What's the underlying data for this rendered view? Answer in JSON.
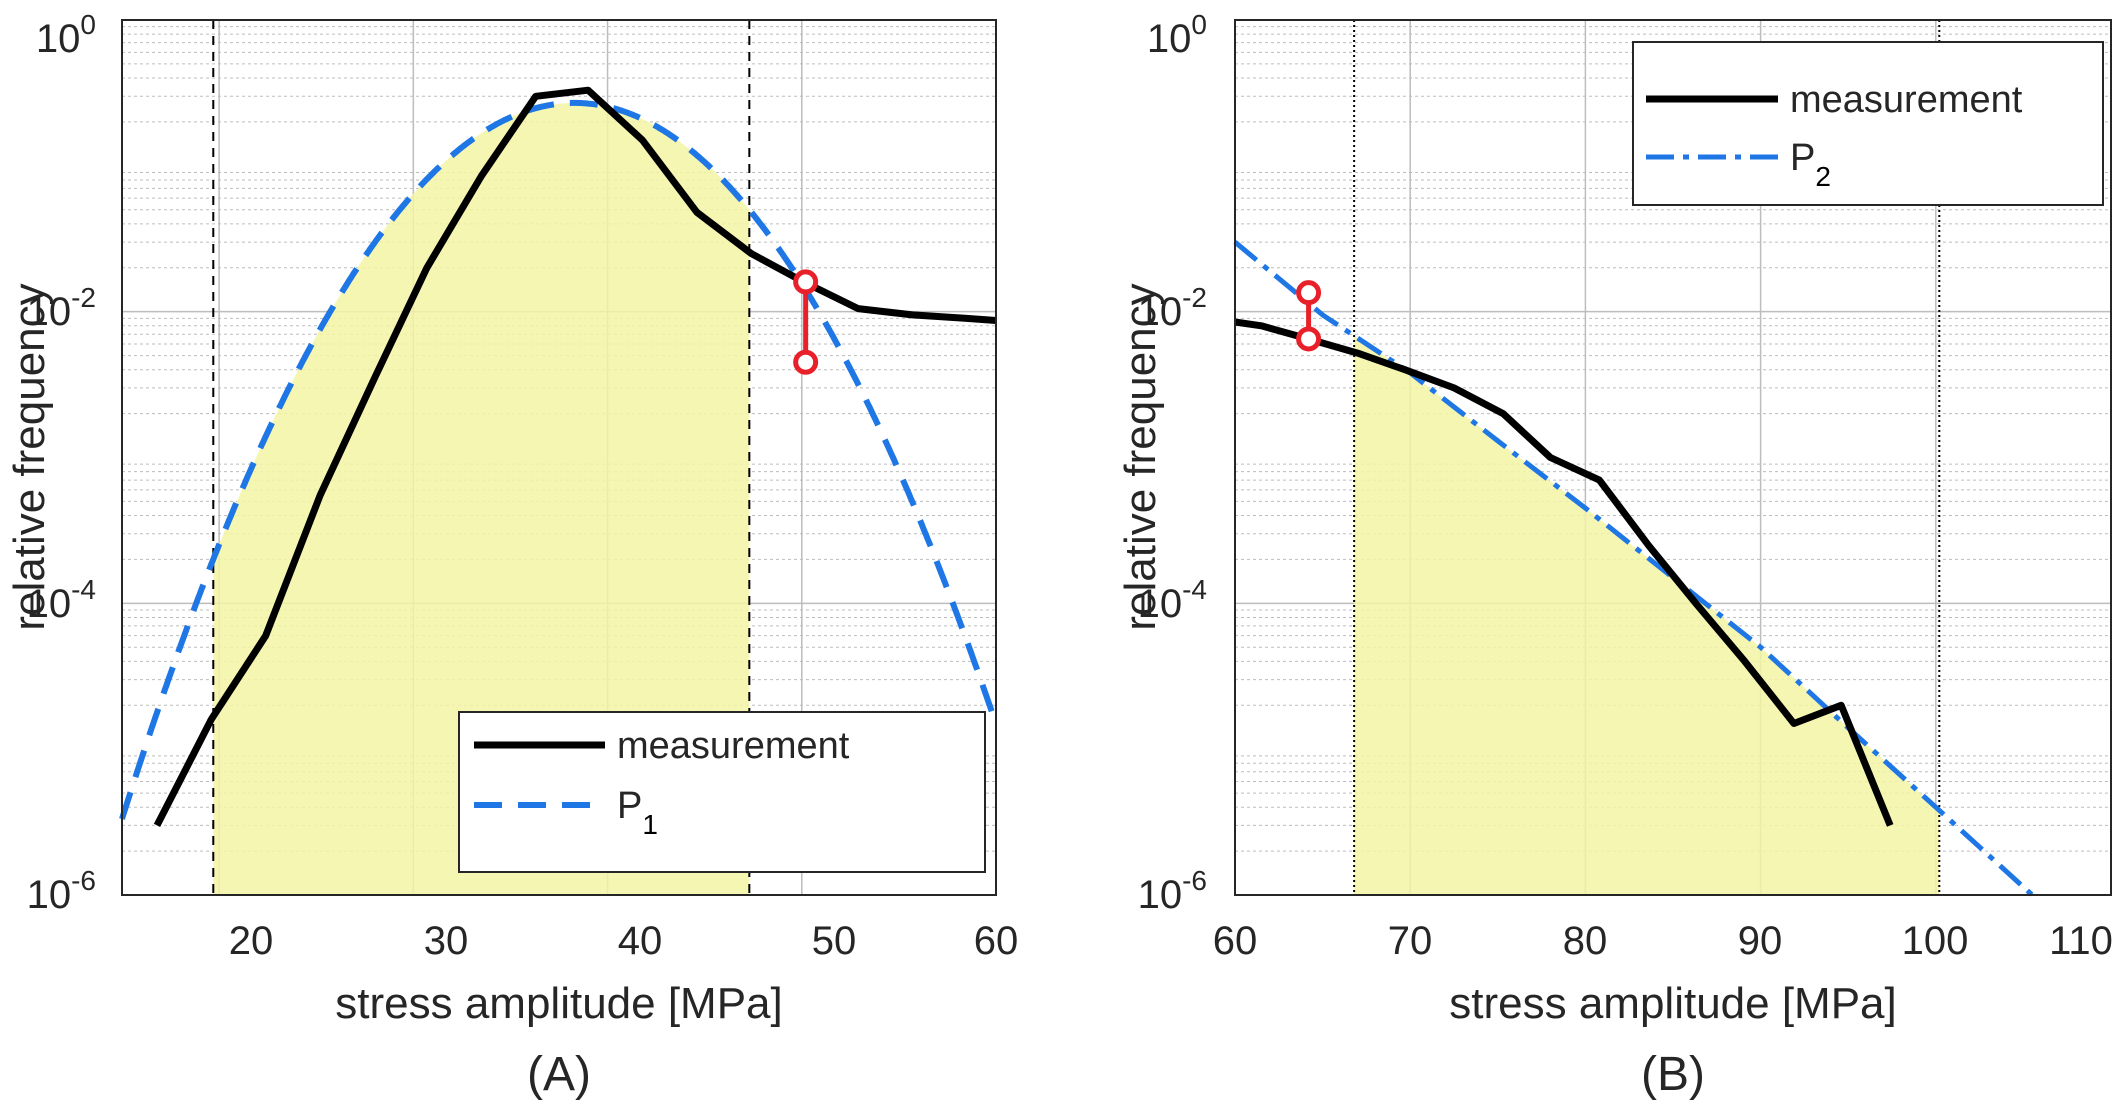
{
  "colors": {
    "measurement": "#000000",
    "fit": "#1f77e6",
    "marker": "#e8202a",
    "fill": "#f5f5a6",
    "grid": "#bdbdbd",
    "axes": "#262626"
  },
  "chart_data": [
    {
      "type": "line",
      "panel_label": "(A)",
      "xlabel": "stress amplitude [MPa]",
      "ylabel": "relative frequency",
      "xlim": [
        15,
        60
      ],
      "ylim": [
        1e-06,
        1
      ],
      "yscale": "log",
      "grid": true,
      "x_ticks": [
        20,
        30,
        40,
        50,
        60
      ],
      "x_tick_labels": [
        "20",
        "30",
        "40",
        "50",
        "60"
      ],
      "y_ticks": [
        {
          "value": 1e-06,
          "base": "10",
          "exp": "-6"
        },
        {
          "value": 0.0001,
          "base": "10",
          "exp": "-4"
        },
        {
          "value": 0.01,
          "base": "10",
          "exp": "-2"
        },
        {
          "value": 1,
          "base": "10",
          "exp": "0"
        }
      ],
      "legend": {
        "position": "bottom-right",
        "entries": [
          {
            "label": "measurement",
            "style": "solid",
            "series": "measurement"
          },
          {
            "label": "P",
            "sub": "1",
            "style": "dashed",
            "series": "fit"
          }
        ]
      },
      "vlines": [
        19.7,
        47.3
      ],
      "shaded_region": [
        19.7,
        47.3
      ],
      "series": [
        {
          "name": "measurement",
          "x": [
            16.8,
            19.6,
            22.4,
            25.2,
            28.0,
            30.7,
            33.5,
            36.3,
            39.0,
            41.8,
            44.6,
            47.4,
            50.1,
            52.9,
            55.7,
            58.4,
            60.0
          ],
          "y": [
            3e-06,
            1.6e-05,
            6e-05,
            0.00055,
            0.0035,
            0.02,
            0.085,
            0.3,
            0.33,
            0.15,
            0.048,
            0.025,
            0.016,
            0.0105,
            0.0095,
            0.009,
            0.0087
          ]
        },
        {
          "name": "P1",
          "mu": 38.3,
          "sigma": 4.9,
          "peak": 0.27,
          "x_range": [
            15,
            60
          ]
        }
      ],
      "markers": [
        {
          "x": 50.2,
          "y": 0.016
        },
        {
          "x": 50.2,
          "y": 0.0045
        }
      ]
    },
    {
      "type": "line",
      "panel_label": "(B)",
      "xlabel": "stress amplitude [MPa]",
      "ylabel": "relative frequency",
      "xlim": [
        60,
        110
      ],
      "ylim": [
        1e-06,
        1
      ],
      "yscale": "log",
      "grid": true,
      "x_ticks": [
        60,
        70,
        80,
        90,
        100,
        110
      ],
      "x_tick_labels": [
        "60",
        "70",
        "80",
        "90",
        "100",
        "110"
      ],
      "y_ticks": [
        {
          "value": 1e-06,
          "base": "10",
          "exp": "-6"
        },
        {
          "value": 0.0001,
          "base": "10",
          "exp": "-4"
        },
        {
          "value": 0.01,
          "base": "10",
          "exp": "-2"
        },
        {
          "value": 1,
          "base": "10",
          "exp": "0"
        }
      ],
      "legend": {
        "position": "top-right",
        "entries": [
          {
            "label": "measurement",
            "style": "solid",
            "series": "measurement"
          },
          {
            "label": "P",
            "sub": "2",
            "style": "dashdot",
            "series": "fit"
          }
        ]
      },
      "vlines": [
        66.8,
        100.2
      ],
      "shaded_region": [
        66.8,
        100.2
      ],
      "series": [
        {
          "name": "measurement",
          "x": [
            60.0,
            61.5,
            64.2,
            67.0,
            69.7,
            72.5,
            75.3,
            78.0,
            80.8,
            83.6,
            86.3,
            89.1,
            91.9,
            94.6,
            97.4
          ],
          "y": [
            0.0085,
            0.008,
            0.0065,
            0.0052,
            0.004,
            0.003,
            0.002,
            0.001,
            0.0007,
            0.00025,
            0.0001,
            4e-05,
            1.5e-05,
            2e-05,
            3e-06
          ]
        },
        {
          "name": "P2",
          "x": [
            60,
            65,
            70,
            75,
            80,
            85,
            90,
            95,
            100,
            105.5
          ],
          "y": [
            0.03,
            0.0095,
            0.0038,
            0.0013,
            0.00045,
            0.00015,
            5e-05,
            1.4e-05,
            4e-06,
            1e-06
          ]
        }
      ],
      "markers": [
        {
          "x": 64.2,
          "y": 0.0135
        },
        {
          "x": 64.2,
          "y": 0.0065
        }
      ]
    }
  ]
}
